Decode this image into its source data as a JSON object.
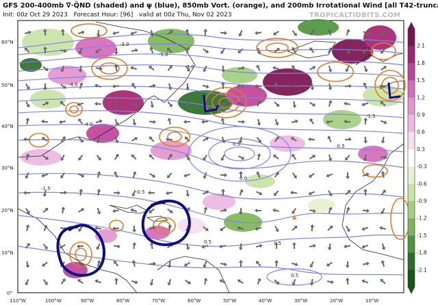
{
  "header": {
    "title": "GFS 200-400mb ∇·Q̄ND (shaded) and ψ (blue), 850mb Vort. (orange), and 200mb Irrotational Wind [all T42-truncated]",
    "init": "Init: 00z Oct 29 2023",
    "forecast": "Forecast Hour: [96]",
    "valid": "valid at 00z Thu, Nov 02 2023",
    "credit": "TROPICALTIDBITS.COM"
  },
  "map": {
    "lon_labels": [
      "110°W",
      "100°W",
      "90°W",
      "80°W",
      "70°W",
      "60°W",
      "50°W",
      "40°W",
      "30°W",
      "20°W",
      "10°W"
    ],
    "lat_labels": [
      "60°N",
      "50°N",
      "40°N",
      "30°N",
      "20°N",
      "10°N",
      "0°"
    ],
    "contour_labels": [
      "-3.0",
      "-5.0",
      "-4.0",
      "-4.0",
      "-1.5",
      "-0.5",
      "0.0",
      "0.5",
      "0.5",
      "0.5",
      "-0.5",
      "-1.5",
      "0.5",
      "-3.0"
    ]
  },
  "colorbar": {
    "ticks": [
      "2.1",
      "1.8",
      "1.5",
      "1.2",
      "0.9",
      "0.6",
      "0.3",
      "-0.3",
      "-0.6",
      "-0.9",
      "-1.2",
      "-1.5",
      "-1.8",
      "-2.1"
    ],
    "colors": [
      "#7a1450",
      "#a3246e",
      "#c0449a",
      "#d46cbb",
      "#e296d1",
      "#eeb8e2",
      "#f7dff2",
      "#ffffff",
      "#e6f2d0",
      "#c8e3a6",
      "#a3cf7e",
      "#7db659",
      "#4f9540",
      "#2c6e2a",
      "#185519"
    ]
  },
  "colors": {
    "streamfunction": "#8080ee",
    "vorticity": "#e87a1e",
    "land": "#ffffff",
    "annotation": "#0d0d8c",
    "arrows": "#666666"
  }
}
